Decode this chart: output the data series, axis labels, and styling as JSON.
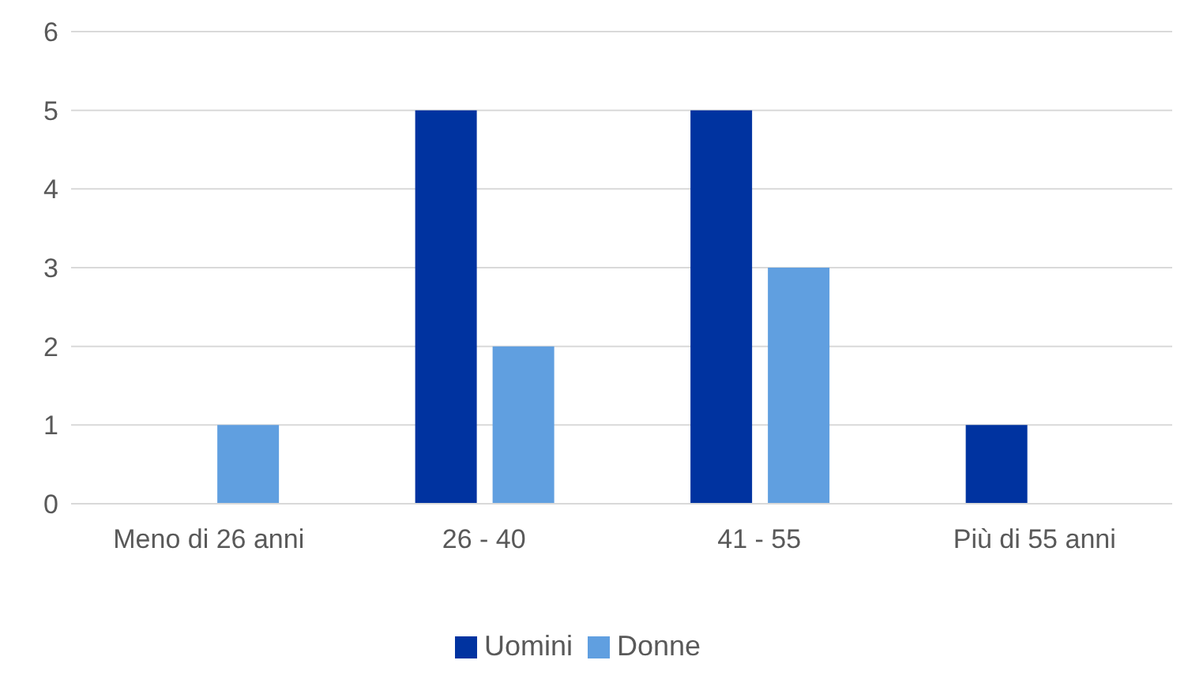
{
  "chart_data": {
    "type": "bar",
    "categories": [
      "Meno di 26 anni",
      "26 - 40",
      "41 - 55",
      "Più di 55 anni"
    ],
    "series": [
      {
        "name": "Uomini",
        "color": "#0033a0",
        "values": [
          0,
          5,
          5,
          1
        ]
      },
      {
        "name": "Donne",
        "color": "#609fe0",
        "values": [
          1,
          2,
          3,
          0
        ]
      }
    ],
    "ylim": [
      0,
      6
    ],
    "yticks": [
      0,
      1,
      2,
      3,
      4,
      5,
      6
    ],
    "grid": "y",
    "legend": "bottom"
  }
}
